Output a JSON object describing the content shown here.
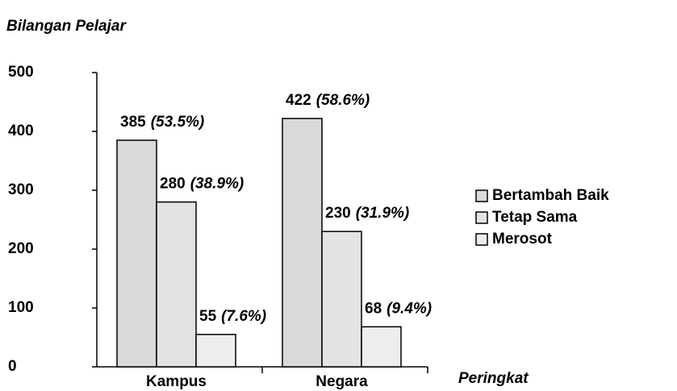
{
  "chart_data": {
    "type": "bar",
    "y_label": "Bilangan Pelajar",
    "x_label": "Peringkat",
    "categories": [
      "Kampus",
      "Negara"
    ],
    "series": [
      {
        "name": "Bertambah Baik",
        "color": "#d9d9d9",
        "values": [
          385,
          422
        ],
        "percent_labels": [
          "(53.5%)",
          "(58.6%)"
        ]
      },
      {
        "name": "Tetap Sama",
        "color": "#e3e3e3",
        "values": [
          280,
          230
        ],
        "percent_labels": [
          "(38.9%)",
          "(31.9%)"
        ]
      },
      {
        "name": "Merosot",
        "color": "#ededed",
        "values": [
          55,
          68
        ],
        "percent_labels": [
          "(7.6%)",
          "(9.4%)"
        ]
      }
    ],
    "ylim": [
      0,
      500
    ],
    "yticks": [
      0,
      100,
      200,
      300,
      400,
      500
    ],
    "grid": false,
    "legend": "right"
  }
}
